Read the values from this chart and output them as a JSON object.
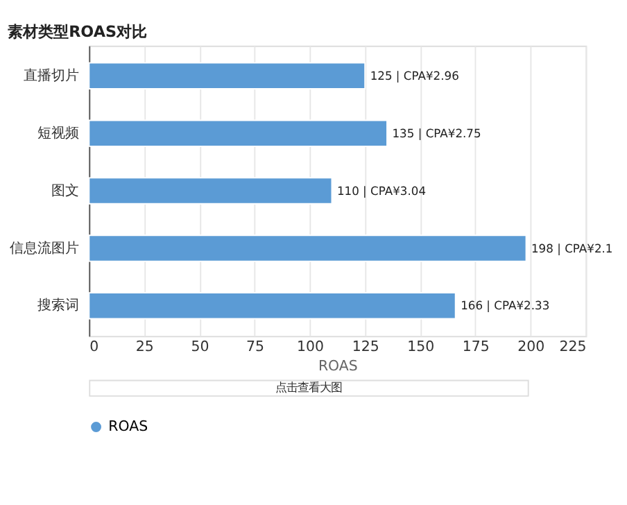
{
  "chart_data": {
    "type": "bar",
    "orientation": "horizontal",
    "title": "素材类型ROAS对比",
    "xlabel": "ROAS",
    "categories": [
      "直播切片",
      "短视频",
      "图文",
      "信息流图片",
      "搜索词"
    ],
    "series": [
      {
        "name": "ROAS",
        "color": "#5b9bd5",
        "values": [
          125,
          135,
          110,
          198,
          166
        ],
        "value_labels": [
          "125 | CPA¥2.96",
          "135 | CPA¥2.75",
          "110 | CPA¥3.04",
          "198 | CPA¥2.1",
          "166 | CPA¥2.33"
        ]
      }
    ],
    "xlim": [
      0,
      225
    ],
    "xticks": [
      0,
      25,
      50,
      75,
      100,
      125,
      150,
      175,
      200,
      225
    ],
    "grid": "x",
    "legend": "bottom",
    "annotations": [
      "点击查看大图"
    ]
  }
}
